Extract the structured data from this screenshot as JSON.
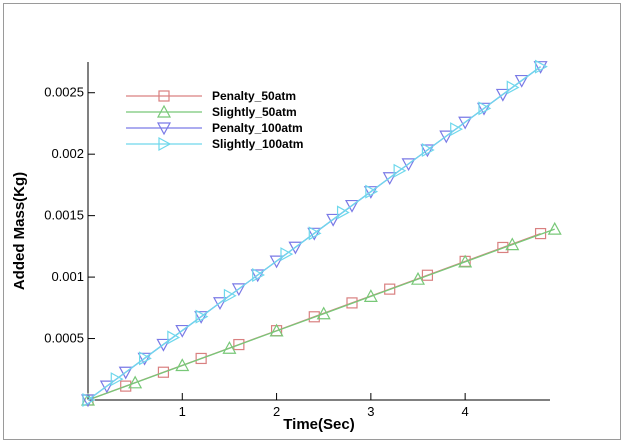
{
  "chart_data": {
    "type": "line",
    "title": "",
    "xlabel": "Time(Sec)",
    "ylabel": "Added Mass(Kg)",
    "xlim": [
      0,
      4.9
    ],
    "ylim": [
      0,
      0.00275
    ],
    "x_ticks": [
      {
        "value": 1,
        "label": "1"
      },
      {
        "value": 2,
        "label": "2"
      },
      {
        "value": 3,
        "label": "3"
      },
      {
        "value": 4,
        "label": "4"
      }
    ],
    "y_ticks": [
      {
        "value": 0.0005,
        "label": "0.0005"
      },
      {
        "value": 0.001,
        "label": "0.001"
      },
      {
        "value": 0.0015,
        "label": "0.0015"
      },
      {
        "value": 0.002,
        "label": "0.002"
      },
      {
        "value": 0.0025,
        "label": "0.0025"
      }
    ],
    "grid": false,
    "legend_position": "top-left",
    "series": [
      {
        "name": "Penalty_50atm",
        "color": "#d98080",
        "marker": "square",
        "x": [
          0,
          0.4,
          0.8,
          1.2,
          1.6,
          2.0,
          2.4,
          2.8,
          3.2,
          3.6,
          4.0,
          4.4,
          4.8
        ],
        "y": [
          0,
          0.000113,
          0.000226,
          0.000338,
          0.000451,
          0.000564,
          0.000677,
          0.00079,
          0.000902,
          0.001015,
          0.001128,
          0.001241,
          0.001354
        ]
      },
      {
        "name": "Slightly_50atm",
        "color": "#78c878",
        "marker": "triangle-up",
        "x": [
          0,
          0.5,
          1.0,
          1.5,
          2.0,
          2.5,
          3.0,
          3.5,
          4.0,
          4.5,
          4.95
        ],
        "y": [
          0,
          0.00014,
          0.000281,
          0.000421,
          0.000562,
          0.000702,
          0.000843,
          0.000983,
          0.001124,
          0.001264,
          0.00139
        ]
      },
      {
        "name": "Penalty_100atm",
        "color": "#7a7ae6",
        "marker": "triangle-down",
        "x": [
          0,
          0.2,
          0.4,
          0.6,
          0.8,
          1.0,
          1.2,
          1.4,
          1.6,
          1.8,
          2.0,
          2.2,
          2.4,
          2.6,
          2.8,
          3.0,
          3.2,
          3.4,
          3.6,
          3.8,
          4.0,
          4.2,
          4.4,
          4.6,
          4.8
        ],
        "y": [
          0,
          0.000113,
          0.000226,
          0.000339,
          0.000452,
          0.000565,
          0.000678,
          0.000791,
          0.000904,
          0.001017,
          0.00113,
          0.001243,
          0.001356,
          0.001469,
          0.001582,
          0.001695,
          0.001808,
          0.001921,
          0.002034,
          0.002147,
          0.00226,
          0.002373,
          0.002486,
          0.002599,
          0.002712
        ]
      },
      {
        "name": "Slightly_100atm",
        "color": "#6fd8ec",
        "marker": "triangle-right",
        "x": [
          0,
          0.3,
          0.6,
          0.9,
          1.2,
          1.5,
          1.8,
          2.1,
          2.4,
          2.7,
          3.0,
          3.3,
          3.6,
          3.9,
          4.2,
          4.5,
          4.8
        ],
        "y": [
          0,
          0.00017,
          0.000339,
          0.000509,
          0.000678,
          0.000848,
          0.001017,
          0.001187,
          0.001356,
          0.001526,
          0.001695,
          0.001865,
          0.002034,
          0.002204,
          0.002373,
          0.002543,
          0.002712
        ]
      }
    ]
  }
}
